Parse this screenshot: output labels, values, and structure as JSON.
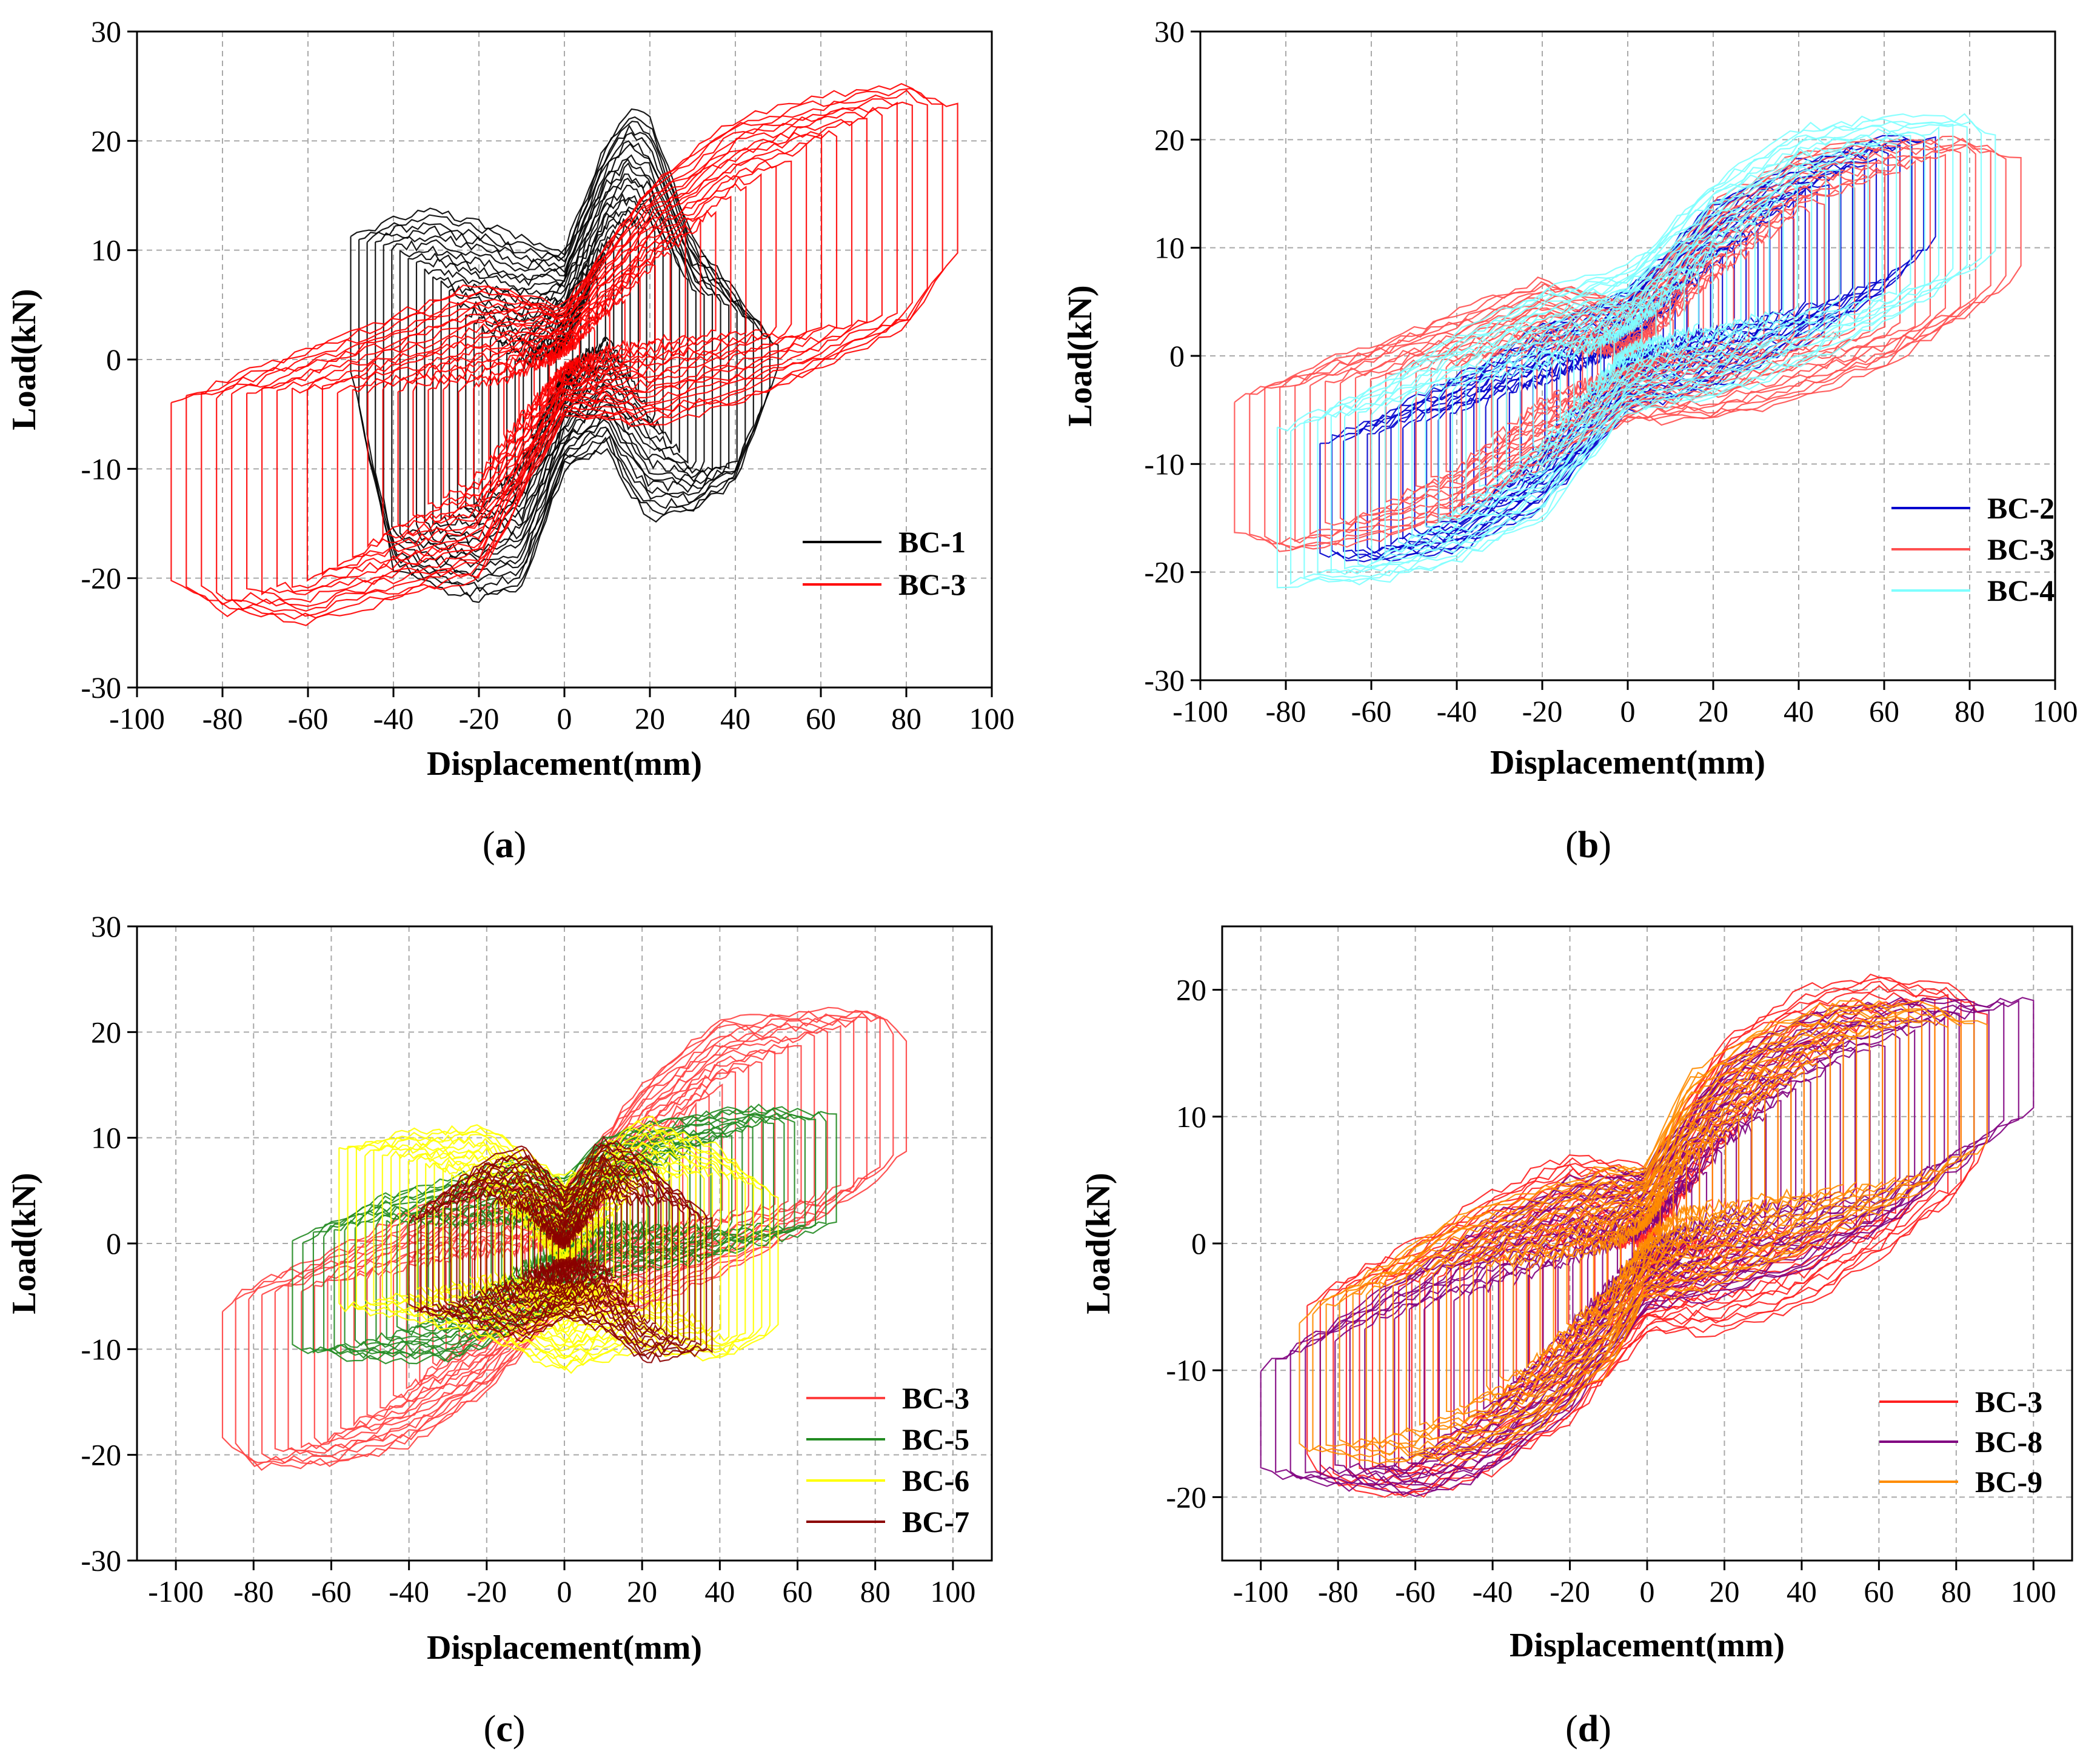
{
  "figure": {
    "panels": [
      {
        "id": "a",
        "caption_letter": "a",
        "xlabel": "Displacement(mm)",
        "ylabel": "Load(kN)",
        "xlim": [
          -100,
          100
        ],
        "ylim": [
          -30,
          30
        ],
        "xticks": [
          -100,
          -80,
          -60,
          -40,
          -20,
          0,
          20,
          40,
          60,
          80,
          100
        ],
        "yticks": [
          -30,
          -20,
          -10,
          0,
          10,
          20,
          30
        ],
        "grid": true,
        "legend_position": "lower-right"
      },
      {
        "id": "b",
        "caption_letter": "b",
        "xlabel": "Displacement(mm)",
        "ylabel": "Load(kN)",
        "xlim": [
          -100,
          100
        ],
        "ylim": [
          -30,
          30
        ],
        "xticks": [
          -100,
          -80,
          -60,
          -40,
          -20,
          0,
          20,
          40,
          60,
          80,
          100
        ],
        "yticks": [
          -30,
          -20,
          -10,
          0,
          10,
          20,
          30
        ],
        "grid": true,
        "legend_position": "lower-right"
      },
      {
        "id": "c",
        "caption_letter": "c",
        "xlabel": "Displacement(mm)",
        "ylabel": "Load(kN)",
        "xlim": [
          -110,
          110
        ],
        "ylim": [
          -30,
          30
        ],
        "xticks": [
          -100,
          -80,
          -60,
          -40,
          -20,
          0,
          20,
          40,
          60,
          80,
          100
        ],
        "yticks": [
          -30,
          -20,
          -10,
          0,
          10,
          20,
          30
        ],
        "grid": true,
        "legend_position": "lower-right"
      },
      {
        "id": "d",
        "caption_letter": "d",
        "xlabel": "Displacement(mm)",
        "ylabel": "Load(kN)",
        "xlim": [
          -110,
          110
        ],
        "ylim": [
          -25,
          25
        ],
        "xticks": [
          -100,
          -80,
          -60,
          -40,
          -20,
          0,
          20,
          40,
          60,
          80,
          100
        ],
        "yticks": [
          -20,
          -10,
          0,
          10,
          20
        ],
        "grid": true,
        "legend_position": "lower-right"
      }
    ]
  },
  "chart_data": [
    {
      "type": "line",
      "panel": "a",
      "xlabel": "Displacement(mm)",
      "ylabel": "Load(kN)",
      "xlim": [
        -100,
        100
      ],
      "ylim": [
        -30,
        30
      ],
      "legend": "lower-right",
      "series": [
        {
          "name": "BC-1",
          "color": "#000000",
          "envelope_x": [
            -50,
            -40,
            -30,
            -20,
            -10,
            0,
            10,
            15,
            20,
            30,
            40,
            50
          ],
          "envelope_upper": [
            11,
            13,
            13.6,
            12.5,
            11,
            10,
            20,
            23,
            22,
            11,
            6,
            1
          ],
          "envelope_lower": [
            -1,
            -19,
            -21,
            -22,
            -21,
            -10,
            -8,
            -12,
            -14.5,
            -14,
            -11,
            -1
          ]
        },
        {
          "name": "BC-3",
          "color": "#ff0000",
          "envelope_x": [
            -92,
            -80,
            -60,
            -40,
            -20,
            0,
            20,
            40,
            60,
            80,
            92
          ],
          "envelope_upper": [
            -4,
            -2,
            1,
            4,
            7,
            5,
            16,
            22,
            24,
            25,
            23
          ],
          "envelope_lower": [
            -20,
            -23,
            -24,
            -22,
            -20,
            -5,
            -6,
            -4,
            -1,
            3,
            10
          ]
        }
      ]
    },
    {
      "type": "line",
      "panel": "b",
      "xlabel": "Displacement(mm)",
      "ylabel": "Load(kN)",
      "xlim": [
        -100,
        100
      ],
      "ylim": [
        -30,
        30
      ],
      "legend": "lower-right",
      "series": [
        {
          "name": "BC-2",
          "color": "#0000cd",
          "envelope_x": [
            -72,
            -60,
            -40,
            -20,
            0,
            20,
            40,
            60,
            72
          ],
          "envelope_upper": [
            -8,
            -6,
            -2,
            3,
            6,
            14,
            18,
            20,
            20
          ],
          "envelope_lower": [
            -18,
            -19,
            -18,
            -14,
            -5,
            -3,
            1,
            6,
            11
          ]
        },
        {
          "name": "BC-3",
          "color": "#ff5050",
          "envelope_x": [
            -92,
            -80,
            -60,
            -40,
            -20,
            0,
            20,
            40,
            60,
            80,
            92
          ],
          "envelope_upper": [
            -4,
            -2,
            1,
            4,
            7,
            5,
            14,
            19,
            20,
            20,
            18
          ],
          "envelope_lower": [
            -16,
            -18,
            -17,
            -15,
            -10,
            -6,
            -6,
            -4,
            -1,
            4,
            8
          ]
        },
        {
          "name": "BC-4",
          "color": "#7fffff",
          "envelope_x": [
            -82,
            -60,
            -40,
            -20,
            0,
            20,
            40,
            60,
            80,
            86
          ],
          "envelope_upper": [
            -7,
            -3,
            2,
            6,
            8,
            16,
            21,
            22,
            22,
            20
          ],
          "envelope_lower": [
            -21,
            -21,
            -19,
            -15,
            -5,
            -4,
            -1,
            3,
            8,
            10
          ]
        }
      ]
    },
    {
      "type": "line",
      "panel": "c",
      "xlabel": "Displacement(mm)",
      "ylabel": "Load(kN)",
      "xlim": [
        -110,
        110
      ],
      "ylim": [
        -30,
        30
      ],
      "legend": "lower-right",
      "series": [
        {
          "name": "BC-3",
          "color": "#ff4040",
          "envelope_x": [
            -88,
            -80,
            -60,
            -40,
            -20,
            0,
            20,
            40,
            60,
            80,
            88
          ],
          "envelope_upper": [
            -6,
            -4,
            -1,
            3,
            6,
            5,
            15,
            21,
            22,
            22,
            19
          ],
          "envelope_lower": [
            -18,
            -21,
            -21,
            -19,
            -14,
            -6,
            -6,
            -3,
            1,
            6,
            9
          ]
        },
        {
          "name": "BC-5",
          "color": "#228b22",
          "envelope_x": [
            -70,
            -50,
            -30,
            -10,
            0,
            10,
            30,
            50,
            70
          ],
          "envelope_upper": [
            0,
            4,
            6,
            8,
            6,
            10,
            12,
            13,
            12
          ],
          "envelope_lower": [
            -10,
            -11,
            -11,
            -8,
            -6,
            -3,
            -2,
            0,
            2
          ]
        },
        {
          "name": "BC-6",
          "color": "#ffff00",
          "envelope_x": [
            -58,
            -40,
            -20,
            0,
            20,
            40,
            55
          ],
          "envelope_upper": [
            9,
            10.5,
            11,
            6,
            12,
            9,
            4
          ],
          "envelope_lower": [
            -6,
            -7,
            -9,
            -12,
            -10,
            -11,
            -8
          ]
        },
        {
          "name": "BC-7",
          "color": "#8b0000",
          "envelope_x": [
            -40,
            -20,
            -10,
            0,
            10,
            20,
            38
          ],
          "envelope_upper": [
            2,
            8,
            9,
            5,
            10,
            8,
            2
          ],
          "envelope_lower": [
            -6,
            -8,
            -9,
            -7,
            -8,
            -11,
            -10
          ]
        }
      ]
    },
    {
      "type": "line",
      "panel": "d",
      "xlabel": "Displacement(mm)",
      "ylabel": "Load(kN)",
      "xlim": [
        -110,
        110
      ],
      "ylim": [
        -25,
        25
      ],
      "legend": "lower-right",
      "series": [
        {
          "name": "BC-3",
          "color": "#ff2020",
          "envelope_x": [
            -88,
            -80,
            -60,
            -40,
            -20,
            0,
            20,
            40,
            60,
            80,
            88
          ],
          "envelope_upper": [
            -5,
            -3,
            0,
            4,
            7,
            6,
            16,
            20,
            21,
            20,
            18
          ],
          "envelope_lower": [
            -17,
            -19,
            -20,
            -18,
            -14,
            -7,
            -7,
            -5,
            -1,
            4,
            8
          ]
        },
        {
          "name": "BC-8",
          "color": "#800080",
          "envelope_x": [
            -100,
            -80,
            -60,
            -40,
            -20,
            0,
            20,
            40,
            60,
            80,
            100
          ],
          "envelope_upper": [
            -10,
            -6,
            -2,
            2,
            5,
            6,
            14,
            18,
            19,
            19,
            19
          ],
          "envelope_lower": [
            -18,
            -19,
            -20,
            -18,
            -13,
            -5,
            -4,
            -2,
            1,
            6,
            11
          ]
        },
        {
          "name": "BC-9",
          "color": "#ff8c00",
          "envelope_x": [
            -90,
            -70,
            -50,
            -30,
            -10,
            0,
            10,
            30,
            50,
            70,
            88
          ],
          "envelope_upper": [
            -6,
            -2,
            2,
            4,
            6,
            6,
            13,
            17,
            19,
            19,
            17
          ],
          "envelope_lower": [
            -16,
            -17,
            -17,
            -15,
            -10,
            -4,
            -4,
            -2,
            1,
            4,
            8
          ]
        }
      ]
    }
  ]
}
